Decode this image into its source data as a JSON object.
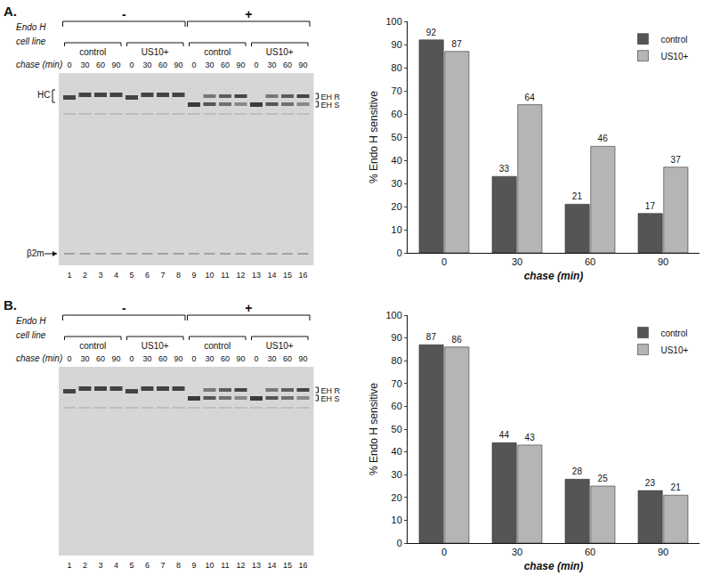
{
  "gels": [
    {
      "label": "A.",
      "treatment": {
        "title": "Endo H",
        "groups": [
          "-",
          "+"
        ]
      },
      "cell_line": {
        "title": "cell line",
        "groups": [
          "control",
          "US10+",
          "control",
          "US10+"
        ]
      },
      "chase": {
        "title": "chase (min)",
        "times": [
          "0",
          "30",
          "60",
          "90"
        ]
      },
      "lanes": [
        "1",
        "2",
        "3",
        "4",
        "5",
        "6",
        "7",
        "8",
        "9",
        "10",
        "11",
        "12",
        "13",
        "14",
        "15",
        "16"
      ],
      "left_labels": [
        "HC",
        "β2m"
      ],
      "right_labels": [
        "EH R",
        "EH S"
      ]
    },
    {
      "label": "B.",
      "treatment": {
        "title": "Endo H",
        "groups": [
          "-",
          "+"
        ]
      },
      "cell_line": {
        "title": "cell line",
        "groups": [
          "control",
          "US10+",
          "control",
          "US10+"
        ]
      },
      "chase": {
        "title": "chase (min)",
        "times": [
          "0",
          "30",
          "60",
          "90"
        ]
      },
      "lanes": [
        "1",
        "2",
        "3",
        "4",
        "5",
        "6",
        "7",
        "8",
        "9",
        "10",
        "11",
        "12",
        "13",
        "14",
        "15",
        "16"
      ],
      "right_labels": [
        "EH R",
        "EH S"
      ]
    }
  ],
  "chart_data": [
    {
      "type": "bar",
      "x_label": "chase (min)",
      "y_label": "% Endo H sensitive",
      "categories": [
        "0",
        "30",
        "60",
        "90"
      ],
      "series": [
        {
          "name": "control",
          "color": "#555555",
          "values": [
            92,
            33,
            21,
            17
          ]
        },
        {
          "name": "US10+",
          "color": "#b5b5b5",
          "values": [
            87,
            64,
            46,
            37
          ]
        }
      ],
      "ylim": [
        0,
        100
      ],
      "yticks": [
        0,
        10,
        20,
        30,
        40,
        50,
        60,
        70,
        80,
        90,
        100
      ],
      "grid": false,
      "legend": "top right",
      "data_labels": true
    },
    {
      "type": "bar",
      "x_label": "chase (min)",
      "y_label": "% Endo H sensitive",
      "categories": [
        "0",
        "30",
        "60",
        "90"
      ],
      "series": [
        {
          "name": "control",
          "color": "#555555",
          "values": [
            87,
            44,
            28,
            23
          ]
        },
        {
          "name": "US10+",
          "color": "#b5b5b5",
          "values": [
            86,
            43,
            25,
            21
          ]
        }
      ],
      "ylim": [
        0,
        100
      ],
      "yticks": [
        0,
        10,
        20,
        30,
        40,
        50,
        60,
        70,
        80,
        90,
        100
      ],
      "grid": false,
      "legend": "top right",
      "data_labels": true
    }
  ]
}
